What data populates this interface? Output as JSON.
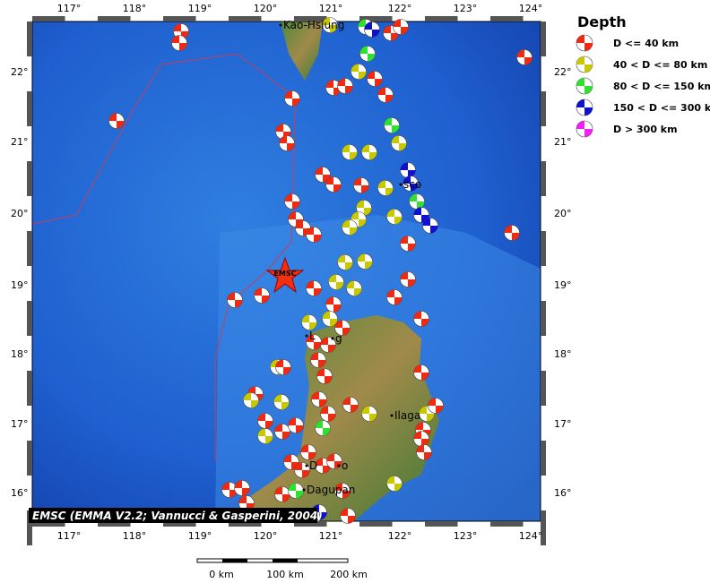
{
  "legend": {
    "title": "Depth",
    "entries": [
      "D <= 40 km",
      "40 < D <= 80 km",
      "80 < D <= 150 km",
      "150 < D <= 300 km",
      "D > 300 km"
    ]
  },
  "axes": {
    "lon_labels": [
      "117°",
      "118°",
      "119°",
      "120°",
      "121°",
      "122°",
      "123°",
      "124°"
    ],
    "lat_labels": [
      "22°",
      "21°",
      "20°",
      "19°",
      "18°",
      "17°",
      "16°"
    ]
  },
  "places": [
    "Kao-Hsiung",
    "sco",
    "L",
    "g",
    "Ilaga",
    "D",
    "o",
    "Dagupan"
  ],
  "star_label": "EMSC",
  "credit": "EMSC (EMMA V2.2; Vannucci & Gasperini, 2004)",
  "scale_labels": [
    "0 km",
    "100 km",
    "200 km"
  ]
}
